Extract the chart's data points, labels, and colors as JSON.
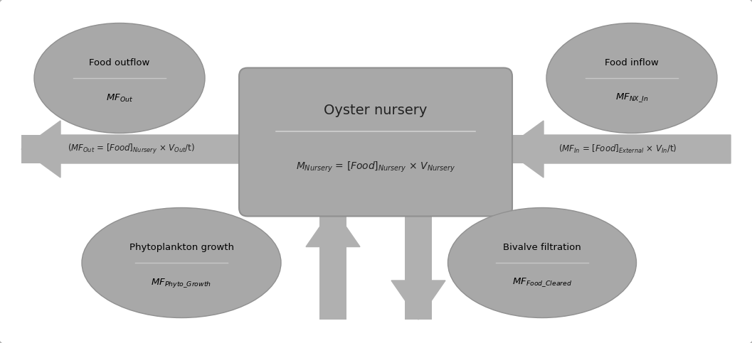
{
  "bg_color": "#ffffff",
  "outer_box_edge": "#b0b0b0",
  "center_box_color": "#a8a8a8",
  "center_box_edge": "#909090",
  "ellipse_color": "#a8a8a8",
  "ellipse_edge": "#909090",
  "arrow_band_color": "#b0b0b0",
  "text_dark": "#222222",
  "text_dark2": "#333333",
  "center_title": "Oyster nursery",
  "center_formula": "$M_{Nursery}$ = $[Food]_{Nursery}$ × $V_{Nursery}$",
  "etl_title": "Food outflow",
  "etl_formula": "$MF_{Out}$",
  "etr_title": "Food inflow",
  "etr_formula": "$MF_{NX\\_In}$",
  "ebl_title": "Phytoplankton growth",
  "ebl_formula": "$MF_{Phyto\\_Growth}$",
  "ebr_title": "Bivalve filtration",
  "ebr_formula": "$MF_{Food\\_Cleared}$",
  "left_label": "($MF_{Out}$ = $[Food]_{Nursery}$ × $V_{Out}$/t)",
  "right_label": "($MF_{In}$ = $[Food]_{External}$ × $V_{In}$/t)"
}
